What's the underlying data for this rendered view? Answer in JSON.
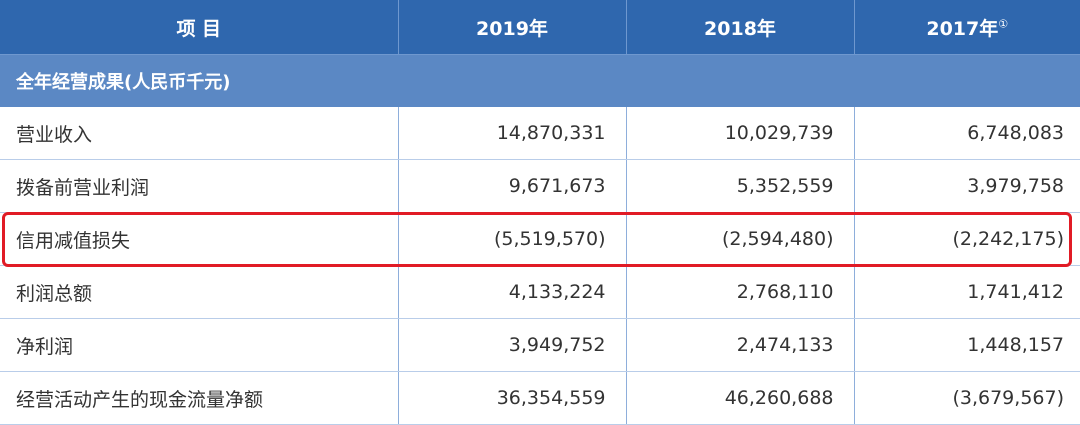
{
  "table": {
    "header": {
      "item": "项 目",
      "y2019": "2019年",
      "y2018": "2018年",
      "y2017": "2017年",
      "y2017_note": "①"
    },
    "section": "全年经营成果(人民币千元)",
    "rows": [
      {
        "label": "营业收入",
        "v2019": "14,870,331",
        "v2018": "10,029,739",
        "v2017": "6,748,083"
      },
      {
        "label": "拨备前营业利润",
        "v2019": "9,671,673",
        "v2018": "5,352,559",
        "v2017": "3,979,758"
      },
      {
        "label": "信用减值损失",
        "v2019": "(5,519,570)",
        "v2018": "(2,594,480)",
        "v2017": "(2,242,175)"
      },
      {
        "label": "利润总额",
        "v2019": "4,133,224",
        "v2018": "2,768,110",
        "v2017": "1,741,412"
      },
      {
        "label": "净利润",
        "v2019": "3,949,752",
        "v2018": "2,474,133",
        "v2017": "1,448,157"
      },
      {
        "label": "经营活动产生的现金流量净额",
        "v2019": "36,354,559",
        "v2018": "46,260,688",
        "v2017": "(3,679,567)"
      }
    ]
  },
  "colors": {
    "header_bg": "#2f67ae",
    "section_bg": "#5b88c4",
    "highlight": "#e11b25"
  }
}
